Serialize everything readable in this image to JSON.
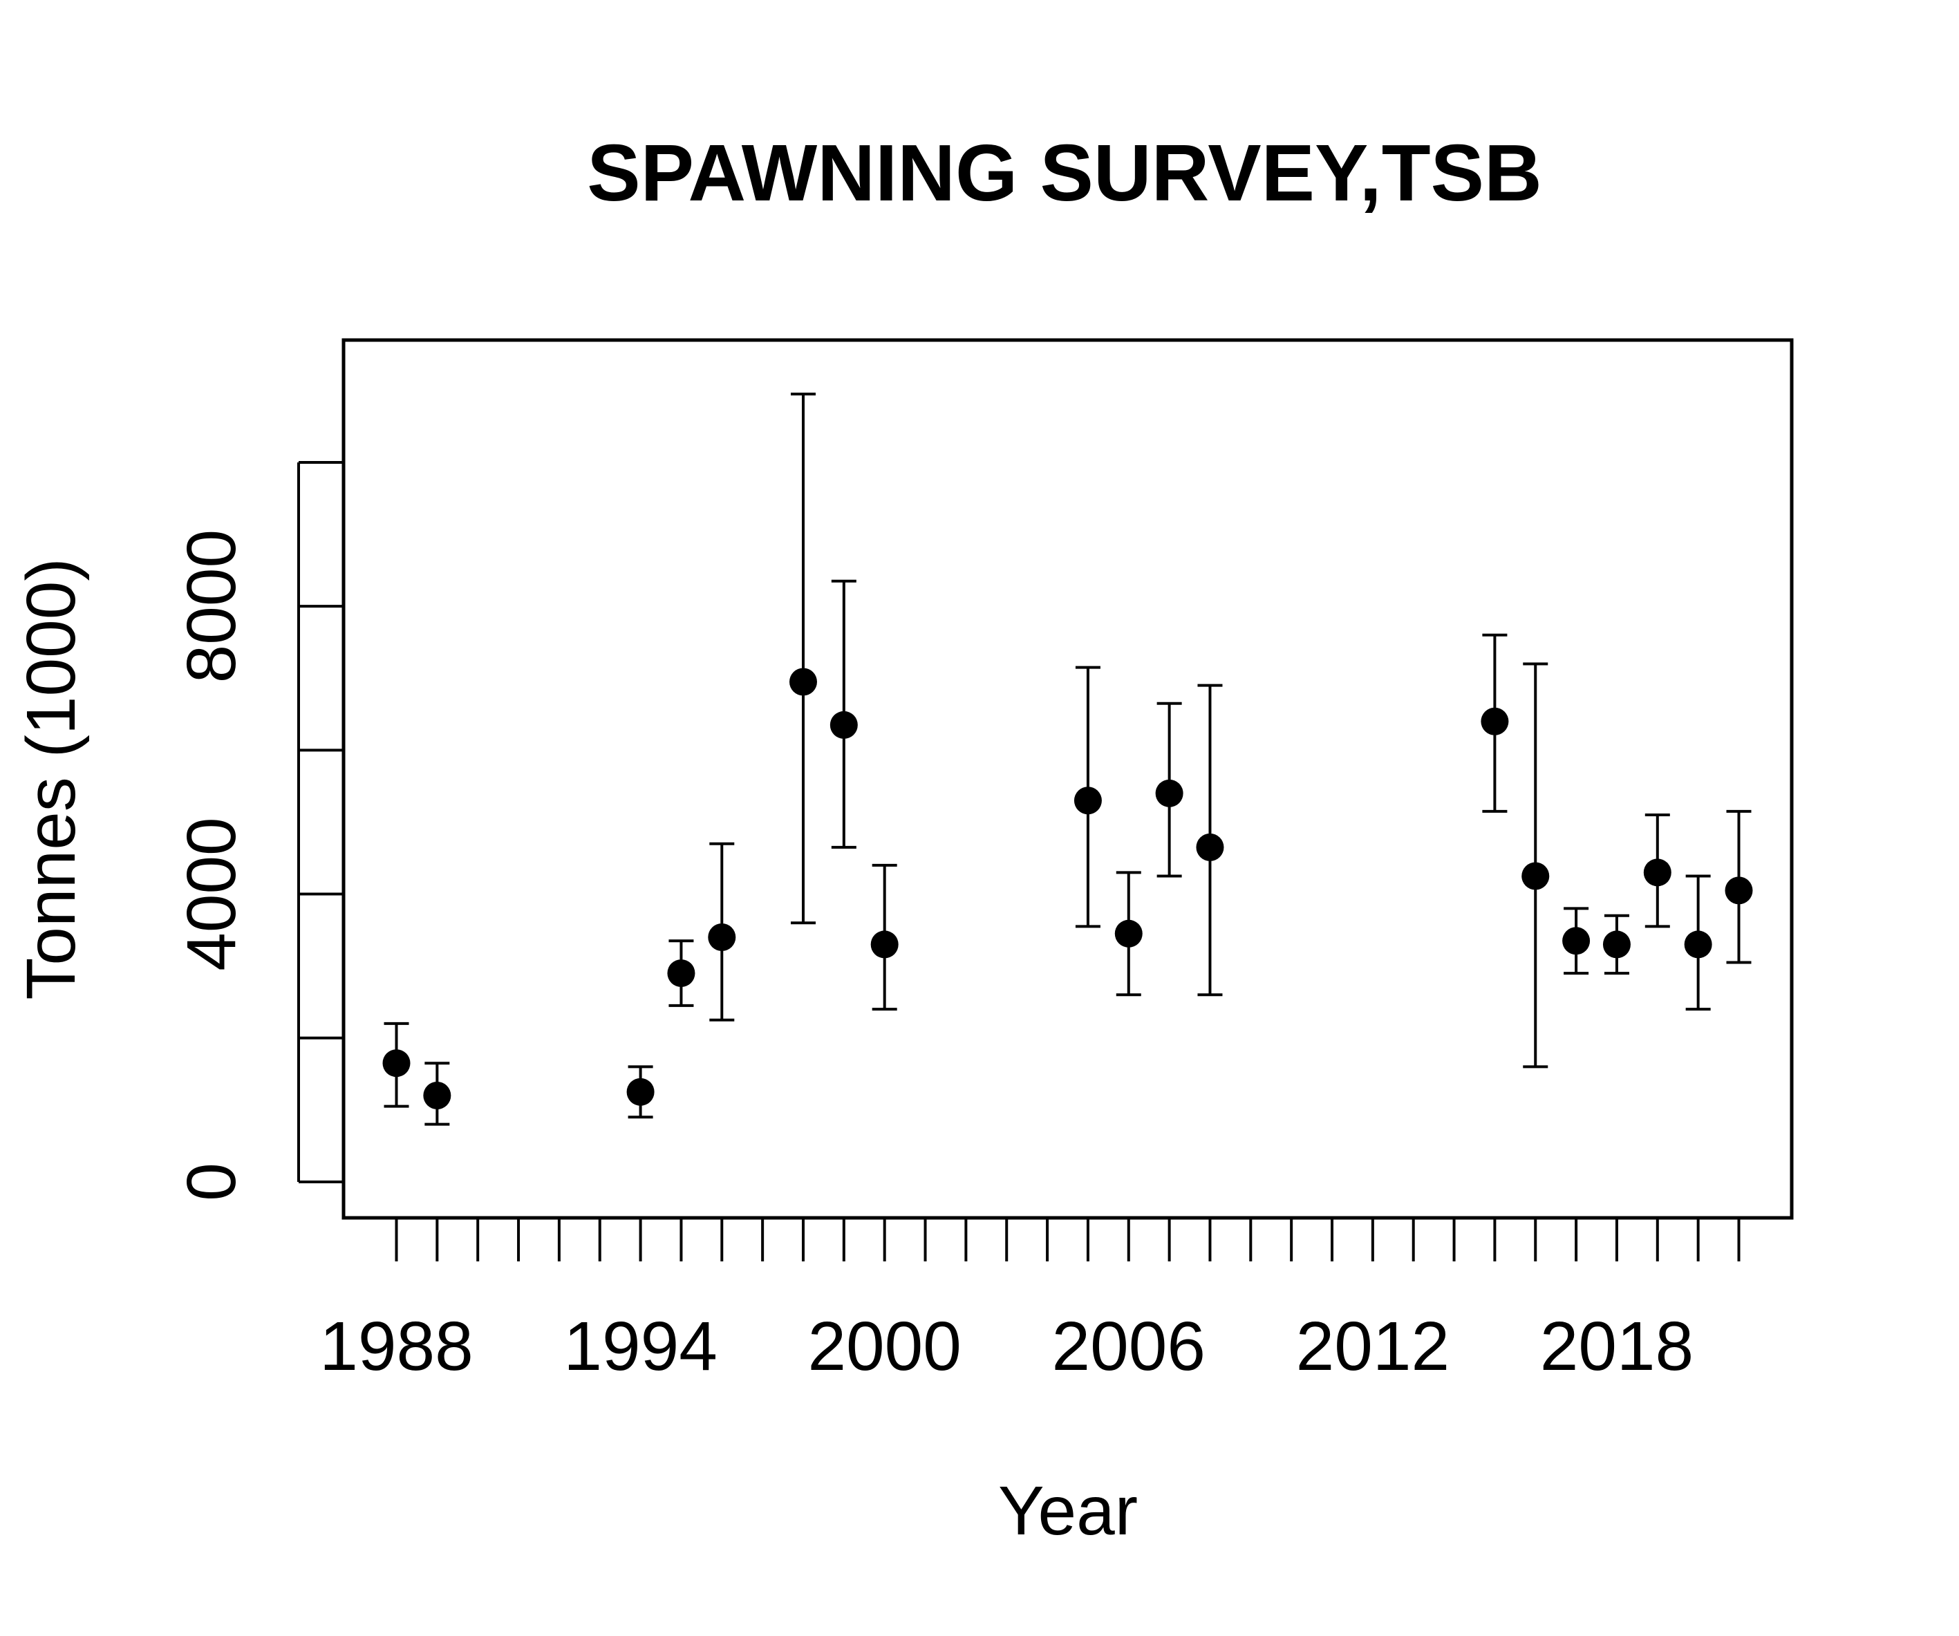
{
  "chart_data": {
    "type": "scatter",
    "title": "SPAWNING SURVEY,TSB",
    "xlabel": "Year",
    "ylabel": "Tonnes (1000)",
    "xlim": [
      1986.7,
      2022.3
    ],
    "ylim": [
      -500,
      11700
    ],
    "x_ticks": [
      1988,
      1989,
      1990,
      1991,
      1992,
      1993,
      1994,
      1995,
      1996,
      1997,
      1998,
      1999,
      2000,
      2001,
      2002,
      2003,
      2004,
      2005,
      2006,
      2007,
      2008,
      2009,
      2010,
      2011,
      2012,
      2013,
      2014,
      2015,
      2016,
      2017,
      2018,
      2019,
      2020,
      2021
    ],
    "x_tick_labels": [
      {
        "value": 1988,
        "label": "1988"
      },
      {
        "value": 1994,
        "label": "1994"
      },
      {
        "value": 2000,
        "label": "2000"
      },
      {
        "value": 2006,
        "label": "2006"
      },
      {
        "value": 2012,
        "label": "2012"
      },
      {
        "value": 2018,
        "label": "2018"
      }
    ],
    "y_ticks": [
      0,
      2000,
      4000,
      6000,
      8000,
      10000
    ],
    "y_tick_labels": [
      {
        "value": 0,
        "label": "0"
      },
      {
        "value": 4000,
        "label": "4000"
      },
      {
        "value": 8000,
        "label": "8000"
      }
    ],
    "grid": false,
    "points": [
      {
        "x": 1988,
        "y": 1650,
        "lo": 1050,
        "hi": 2200
      },
      {
        "x": 1989,
        "y": 1200,
        "lo": 800,
        "hi": 1650
      },
      {
        "x": 1994,
        "y": 1250,
        "lo": 900,
        "hi": 1600
      },
      {
        "x": 1995,
        "y": 2900,
        "lo": 2450,
        "hi": 3350
      },
      {
        "x": 1996,
        "y": 3400,
        "lo": 2250,
        "hi": 4700
      },
      {
        "x": 1998,
        "y": 6950,
        "lo": 3600,
        "hi": 10950
      },
      {
        "x": 1999,
        "y": 6350,
        "lo": 4650,
        "hi": 8350
      },
      {
        "x": 2000,
        "y": 3300,
        "lo": 2400,
        "hi": 4400
      },
      {
        "x": 2005,
        "y": 5300,
        "lo": 3550,
        "hi": 7150
      },
      {
        "x": 2006,
        "y": 3450,
        "lo": 2600,
        "hi": 4300
      },
      {
        "x": 2007,
        "y": 5400,
        "lo": 4250,
        "hi": 6650
      },
      {
        "x": 2008,
        "y": 4650,
        "lo": 2600,
        "hi": 6900
      },
      {
        "x": 2015,
        "y": 6400,
        "lo": 5150,
        "hi": 7600
      },
      {
        "x": 2016,
        "y": 4250,
        "lo": 1600,
        "hi": 7200
      },
      {
        "x": 2017,
        "y": 3350,
        "lo": 2900,
        "hi": 3800
      },
      {
        "x": 2018,
        "y": 3300,
        "lo": 2900,
        "hi": 3700
      },
      {
        "x": 2019,
        "y": 4300,
        "lo": 3550,
        "hi": 5100
      },
      {
        "x": 2020,
        "y": 3300,
        "lo": 2400,
        "hi": 4250
      },
      {
        "x": 2021,
        "y": 4050,
        "lo": 3050,
        "hi": 5150
      }
    ]
  }
}
